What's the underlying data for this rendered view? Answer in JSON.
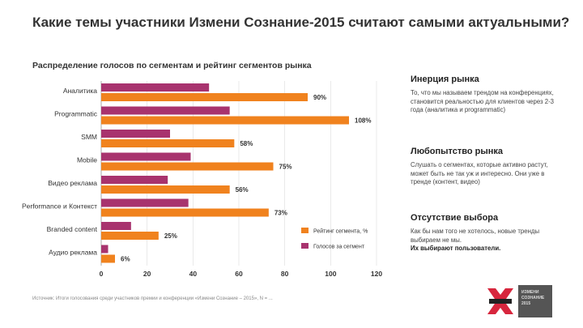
{
  "page": {
    "title": "Какие темы участники Измени Сознание-2015 считают самыми актуальными?",
    "subtitle": "Распределение голосов по сегментам и рейтинг сегментов рынка",
    "footer": "Источник: Итоги голосования среди участников премии и конференции «Измени Сознание – 2015», N = ..."
  },
  "colors": {
    "votes": "#A8336E",
    "rating": "#F0821E",
    "axis": "#999999"
  },
  "chart_data": {
    "type": "bar",
    "orientation": "horizontal",
    "title": "Распределение голосов по сегментам и рейтинг сегментов рынка",
    "categories": [
      "Аналитика",
      "Programmatic",
      "SMM",
      "Mobile",
      "Видео реклама",
      "Performance и Контекст",
      "Branded content",
      "Аудио реклама"
    ],
    "series": [
      {
        "name": "Голосов за сегмент",
        "color": "#A8336E",
        "values": [
          47,
          56,
          30,
          39,
          29,
          38,
          13,
          3
        ]
      },
      {
        "name": "Рейтинг сегмента, %",
        "color": "#F0821E",
        "values": [
          90,
          108,
          58,
          75,
          56,
          73,
          25,
          6
        ],
        "labels": [
          "90%",
          "108%",
          "58%",
          "75%",
          "56%",
          "73%",
          "25%",
          "6%"
        ]
      }
    ],
    "xlim": [
      0,
      120
    ],
    "xticks": [
      "0",
      "20",
      "40",
      "60",
      "80",
      "100",
      "120"
    ],
    "legend_position": "bottom-right"
  },
  "sidebar": [
    {
      "heading": "Инерция рынка",
      "text": "То, что мы называем трендом на конференциях, становится реальностью для клиентов через 2-3 года (аналитика и programmatic)"
    },
    {
      "heading": "Любопытство рынка",
      "text": "Слушать о сегментах, которые активно растут, может быть не так уж и интересно. Они уже в тренде (контент, видео)"
    },
    {
      "heading": "Отсутствие выбора",
      "text": "Как бы нам того не хотелось, новые тренды выбираем не мы.",
      "strong": "Их выбирают пользователи."
    }
  ],
  "logo": {
    "line1": "ИЗМЕНИ",
    "line2": "СОЗНАНИЕ",
    "line3": "2015"
  }
}
